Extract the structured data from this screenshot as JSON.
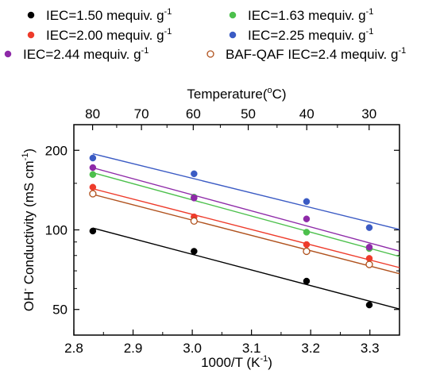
{
  "chart_data": {
    "type": "scatter",
    "x_label": "1000/T (K",
    "x_label_sup": "-1",
    "x_label_tail": ")",
    "y_label_prefix": "OH",
    "y_label_sup": "-",
    "y_label_mid": " Conductivity (mS cm",
    "y_label_sup2": "-1",
    "y_label_tail": ")",
    "top_axis_label": "Temperature(",
    "top_axis_label_sup": "o",
    "top_axis_label_tail": "C)",
    "xlim": [
      2.8,
      3.35
    ],
    "ylim": [
      40,
      250
    ],
    "y_scale": "log",
    "x_ticks": [
      2.8,
      2.9,
      3.0,
      3.1,
      3.2,
      3.3
    ],
    "x_tick_labels": [
      "2.8",
      "2.9",
      "3.0",
      "3.1",
      "3.2",
      "3.3"
    ],
    "y_ticks": [
      50,
      100,
      200
    ],
    "y_tick_labels": [
      "50",
      "100",
      "200"
    ],
    "top_ticks": [
      80,
      70,
      60,
      50,
      40,
      30
    ],
    "top_tick_labels": [
      "80",
      "70",
      "60",
      "50",
      "40",
      "30"
    ],
    "legend_position": "top",
    "series": [
      {
        "name": "IEC=1.50 mequiv. g",
        "name_sup": "-1",
        "color": "#000000",
        "marker": "filled",
        "x": [
          2.832,
          3.003,
          3.193,
          3.299
        ],
        "y": [
          99,
          83,
          64,
          52
        ]
      },
      {
        "name": "IEC=1.63 mequiv. g",
        "name_sup": "-1",
        "color": "#4cc04c",
        "marker": "filled",
        "x": [
          2.832,
          3.003,
          3.193,
          3.299
        ],
        "y": [
          162,
          133,
          98,
          85
        ]
      },
      {
        "name": "IEC=2.00 mequiv. g",
        "name_sup": "-1",
        "color": "#ee3b2b",
        "marker": "filled",
        "x": [
          2.832,
          3.003,
          3.193,
          3.299
        ],
        "y": [
          145,
          112,
          88,
          78
        ]
      },
      {
        "name": "IEC=2.25 mequiv. g",
        "name_sup": "-1",
        "color": "#3b5bc4",
        "marker": "filled",
        "x": [
          2.832,
          3.003,
          3.193,
          3.299
        ],
        "y": [
          187,
          163,
          128,
          102
        ]
      },
      {
        "name": "IEC=2.44 mequiv. g",
        "name_sup": "-1",
        "color": "#8e2aa8",
        "marker": "filled",
        "x": [
          2.832,
          3.003,
          3.193,
          3.299
        ],
        "y": [
          172,
          132,
          110,
          86
        ]
      },
      {
        "name": "BAF-QAF IEC=2.4 mequiv. g",
        "name_sup": "-1",
        "color": "#b0521e",
        "marker": "open",
        "x": [
          2.832,
          3.003,
          3.193,
          3.299
        ],
        "y": [
          137,
          108,
          83,
          74
        ]
      }
    ]
  }
}
